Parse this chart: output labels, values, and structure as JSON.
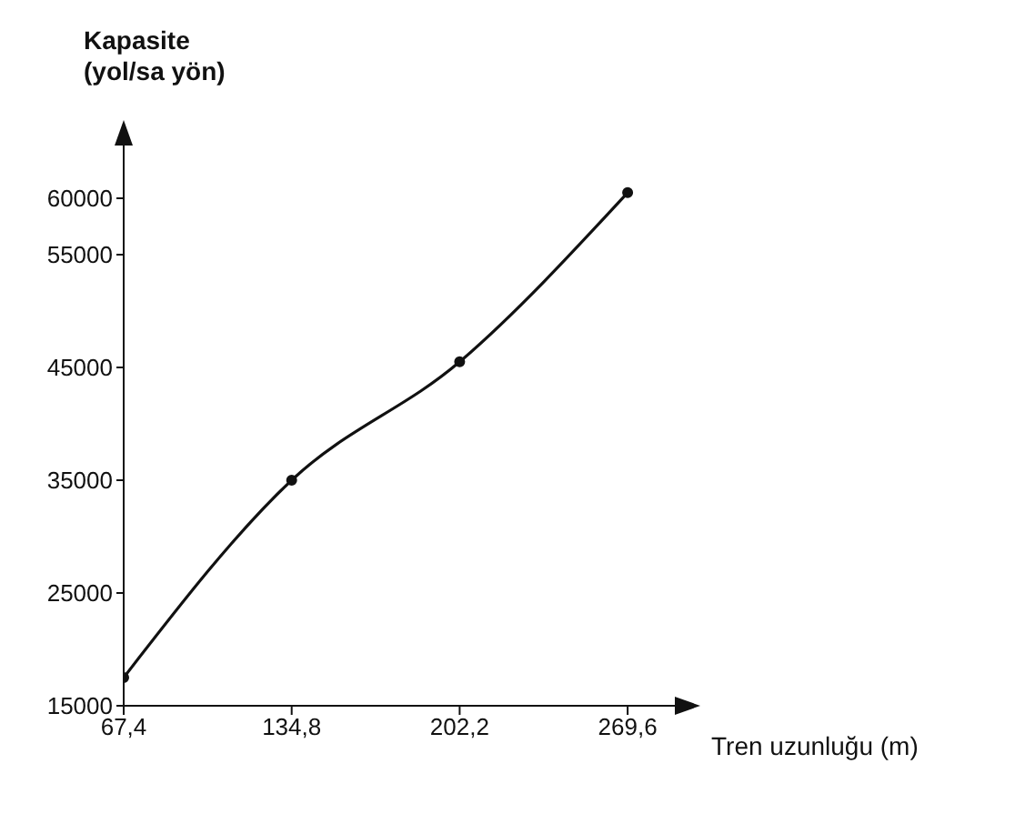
{
  "chart_data": {
    "type": "line",
    "xlabel": "Tren uzunluğu (m)",
    "ylabel": "Kapasite\n(yol/sa yön)",
    "x": [
      67.4,
      134.8,
      202.2,
      269.6
    ],
    "series": [
      {
        "color": "#111111",
        "values": [
          17500,
          35000,
          45500,
          60500
        ]
      }
    ],
    "xlim": [
      67.4,
      290
    ],
    "xticks": [
      {
        "value": 67.4,
        "label": "67,4"
      },
      {
        "value": 134.8,
        "label": "134,8"
      },
      {
        "value": 202.2,
        "label": "202,2"
      },
      {
        "value": 269.6,
        "label": "269,6"
      }
    ],
    "ylim": [
      15000,
      65000
    ],
    "yticks": [
      15000,
      25000,
      35000,
      45000,
      55000,
      60000
    ],
    "grid": false,
    "marker": "circle",
    "line_style": "solid"
  }
}
